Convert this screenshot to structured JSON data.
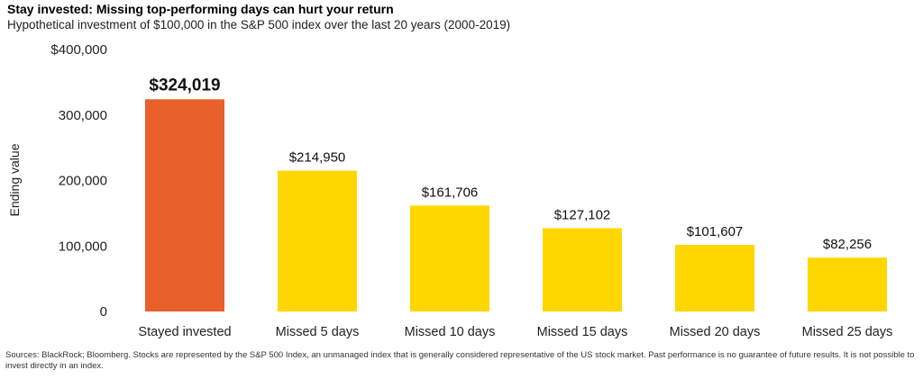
{
  "title": "Stay invested: Missing top-performing days can hurt your return",
  "subtitle": "Hypothetical investment of $100,000 in the S&P 500 index over the last 20 years (2000-2019)",
  "footnote": "Sources: BlackRock; Bloomberg. Stocks are represented by the S&P 500 Index, an unmanaged index that is generally considered representative of the US stock market. Past performance is no guarantee of future results. It is not possible to invest directly in an index.",
  "colors": {
    "highlight": "#E8602A",
    "bar": "#FFD600",
    "text": "#111111"
  },
  "chart_data": {
    "type": "bar",
    "title": "Stay invested: Missing top-performing days can hurt your return",
    "subtitle": "Hypothetical investment of $100,000 in the S&P 500 index over the last 20 years (2000-2019)",
    "xlabel": "",
    "ylabel": "Ending value",
    "ylim": [
      0,
      400000
    ],
    "yticks": [
      0,
      100000,
      200000,
      300000,
      400000
    ],
    "ytick_labels": [
      "0",
      "100,000",
      "200,000",
      "300,000",
      "$400,000"
    ],
    "grid": false,
    "categories": [
      "Stayed invested",
      "Missed 5 days",
      "Missed 10 days",
      "Missed 15 days",
      "Missed 20 days",
      "Missed 25 days"
    ],
    "values": [
      324019,
      214950,
      161706,
      127102,
      101607,
      82256
    ],
    "data_labels": [
      "$324,019",
      "$214,950",
      "$161,706",
      "$127,102",
      "$101,607",
      "$82,256"
    ],
    "highlight_index": 0
  }
}
